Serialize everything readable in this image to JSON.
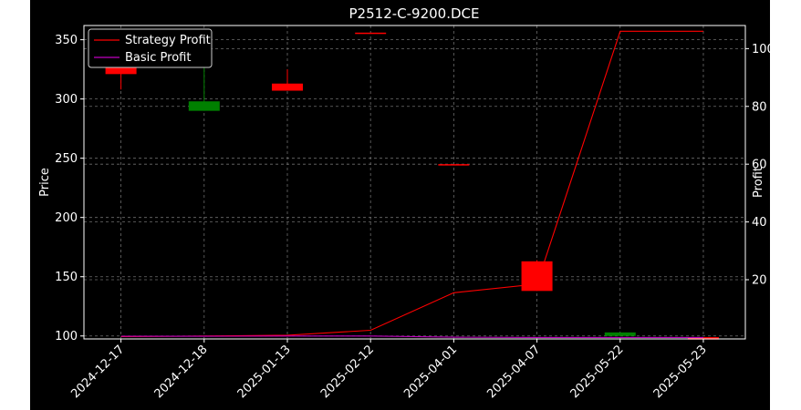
{
  "chart_data": {
    "type": "candlestick",
    "title": "P2512-C-9200.DCE",
    "xlabel": "",
    "ylabel": "Price",
    "y2label": "Profit",
    "categories": [
      "2024-12-17",
      "2024-12-18",
      "2025-01-13",
      "2025-02-12",
      "2025-04-01",
      "2025-04-07",
      "2025-05-22",
      "2025-05-23"
    ],
    "ylim": [
      97.5,
      362
    ],
    "y2lim": [
      -0.5,
      108
    ],
    "yticks": [
      100,
      150,
      200,
      250,
      300,
      350
    ],
    "y2ticks": [
      20,
      40,
      60,
      80,
      100
    ],
    "grid": true,
    "legend_position": "upper-left",
    "candles": [
      {
        "date": "2024-12-17",
        "open": 321,
        "close": 328,
        "high": 331,
        "low": 308,
        "color": "#ff0000"
      },
      {
        "date": "2024-12-18",
        "open": 298,
        "close": 290,
        "high": 328,
        "low": 290,
        "color": "#008000"
      },
      {
        "date": "2025-01-13",
        "open": 307,
        "close": 313,
        "high": 325,
        "low": 307,
        "color": "#ff0000"
      },
      {
        "date": "2025-02-12",
        "open": 355,
        "close": 356,
        "high": 356,
        "low": 355,
        "color": "#ff0000"
      },
      {
        "date": "2025-04-01",
        "open": 244,
        "close": 245,
        "high": 245,
        "low": 244,
        "color": "#ff0000"
      },
      {
        "date": "2025-04-07",
        "open": 138,
        "close": 163,
        "high": 164,
        "low": 138,
        "color": "#ff0000"
      },
      {
        "date": "2025-05-22",
        "open": 103,
        "close": 100,
        "high": 103,
        "low": 100,
        "color": "#008000"
      },
      {
        "date": "2025-05-23",
        "open": 97,
        "close": 99,
        "high": 99,
        "low": 97,
        "color": "#ff0000"
      }
    ],
    "series": [
      {
        "name": "Strategy Profit",
        "color": "#ff0000",
        "axis": "right",
        "values": [
          0.3,
          0.5,
          0.8,
          2.5,
          15.5,
          18.5,
          106,
          106
        ]
      },
      {
        "name": "Basic Profit",
        "color": "#bf00bf",
        "axis": "right",
        "values": [
          0.4,
          0.4,
          0.5,
          0.5,
          0.1,
          0.0,
          0.0,
          0.0
        ]
      }
    ]
  }
}
